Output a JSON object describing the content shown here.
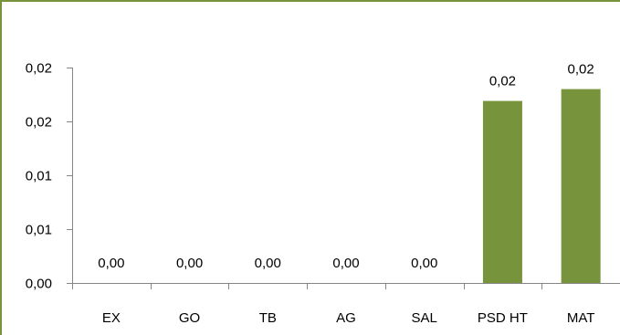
{
  "chart_data": {
    "type": "bar",
    "title": "",
    "xlabel": "",
    "ylabel": "",
    "categories": [
      "EX",
      "GO",
      "TB",
      "AG",
      "SAL",
      "PSD HT",
      "MAT"
    ],
    "values": [
      0.0,
      0.0,
      0.0,
      0.0,
      0.0,
      0.0169,
      0.018
    ],
    "data_labels": [
      "0,00",
      "0,00",
      "0,00",
      "0,00",
      "0,00",
      "0,02",
      "0,02"
    ],
    "ylim": [
      0,
      0.02
    ],
    "yticks": [
      0,
      0.005,
      0.01,
      0.015,
      0.02
    ],
    "ytick_labels": [
      "0,00",
      "0,01",
      "0,01",
      "0,02",
      "0,02"
    ],
    "grid": false,
    "legend": "none"
  },
  "colors": {
    "bar": "#77933C",
    "frame_border": "#77933C",
    "axis": "#868686",
    "text": "#000000"
  }
}
